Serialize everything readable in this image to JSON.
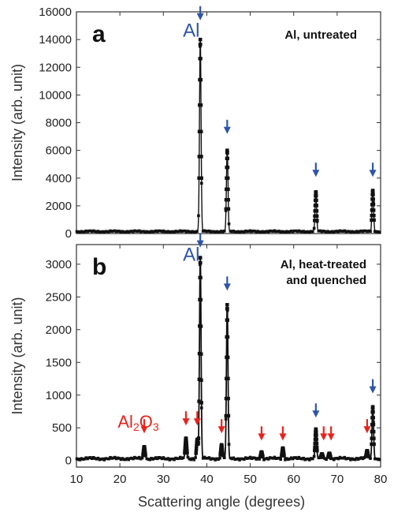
{
  "chart_data": [
    {
      "type": "line",
      "panel_letter": "a",
      "title": "Al, untreated",
      "phase_labels": [
        {
          "text": "Al",
          "color": "#2e55a8",
          "x": 34.5,
          "y": 14200
        }
      ],
      "xlabel": "Scattering angle (degrees)",
      "ylabel": "Intensity (arb. unit)",
      "xlim": [
        10,
        80
      ],
      "ylim": [
        0,
        16000
      ],
      "x_ticks": [
        10,
        20,
        30,
        40,
        50,
        60,
        70,
        80
      ],
      "y_ticks": [
        0,
        2000,
        4000,
        6000,
        8000,
        10000,
        12000,
        14000,
        16000
      ],
      "baseline": 150,
      "peaks": [
        {
          "x": 38.5,
          "y": 14000
        },
        {
          "x": 44.7,
          "y": 6000
        },
        {
          "x": 65.1,
          "y": 3000
        },
        {
          "x": 78.2,
          "y": 3100
        }
      ],
      "arrows": [
        {
          "x": 38.5,
          "y": 15500,
          "color": "#2e55a8"
        },
        {
          "x": 44.7,
          "y": 7300,
          "color": "#2e55a8"
        },
        {
          "x": 65.1,
          "y": 4200,
          "color": "#2e55a8"
        },
        {
          "x": 78.2,
          "y": 4200,
          "color": "#2e55a8"
        }
      ],
      "grid": false
    },
    {
      "type": "line",
      "panel_letter": "b",
      "title_lines": [
        "Al, heat-treated",
        "and quenched"
      ],
      "phase_labels": [
        {
          "text": "Al",
          "color": "#2e55a8",
          "x": 34.5,
          "y": 3050
        },
        {
          "text": "Al",
          "sub": "2",
          "text2": "O",
          "sub2": "3",
          "color": "#e8231c",
          "x": 19.5,
          "y": 500
        }
      ],
      "xlabel": "Scattering angle (degrees)",
      "ylabel": "Intensity (arb. unit)",
      "xlim": [
        10,
        80
      ],
      "ylim": [
        -100,
        3300
      ],
      "x_ticks": [
        10,
        20,
        30,
        40,
        50,
        60,
        70,
        80
      ],
      "y_ticks": [
        0,
        500,
        1000,
        1500,
        2000,
        2500,
        3000
      ],
      "baseline": 30,
      "peaks": [
        {
          "x": 25.6,
          "y": 210
        },
        {
          "x": 35.2,
          "y": 340
        },
        {
          "x": 37.8,
          "y": 320
        },
        {
          "x": 38.5,
          "y": 3100
        },
        {
          "x": 43.4,
          "y": 240
        },
        {
          "x": 44.7,
          "y": 2380
        },
        {
          "x": 52.6,
          "y": 130
        },
        {
          "x": 57.5,
          "y": 190
        },
        {
          "x": 65.1,
          "y": 480
        },
        {
          "x": 66.5,
          "y": 100
        },
        {
          "x": 68.2,
          "y": 110
        },
        {
          "x": 76.9,
          "y": 150
        },
        {
          "x": 78.2,
          "y": 820
        }
      ],
      "arrows": [
        {
          "x": 25.6,
          "y": 440,
          "color": "#e8231c"
        },
        {
          "x": 35.2,
          "y": 560,
          "color": "#e8231c"
        },
        {
          "x": 37.8,
          "y": 560,
          "color": "#e8231c"
        },
        {
          "x": 38.5,
          "y": 3280,
          "color": "#2e55a8"
        },
        {
          "x": 43.4,
          "y": 440,
          "color": "#e8231c"
        },
        {
          "x": 44.7,
          "y": 2620,
          "color": "#2e55a8"
        },
        {
          "x": 52.6,
          "y": 330,
          "color": "#e8231c"
        },
        {
          "x": 57.5,
          "y": 330,
          "color": "#e8231c"
        },
        {
          "x": 65.1,
          "y": 680,
          "color": "#2e55a8"
        },
        {
          "x": 66.9,
          "y": 330,
          "color": "#e8231c"
        },
        {
          "x": 68.6,
          "y": 330,
          "color": "#e8231c"
        },
        {
          "x": 76.9,
          "y": 440,
          "color": "#e8231c"
        },
        {
          "x": 78.2,
          "y": 1050,
          "color": "#2e55a8"
        }
      ],
      "grid": false
    }
  ]
}
